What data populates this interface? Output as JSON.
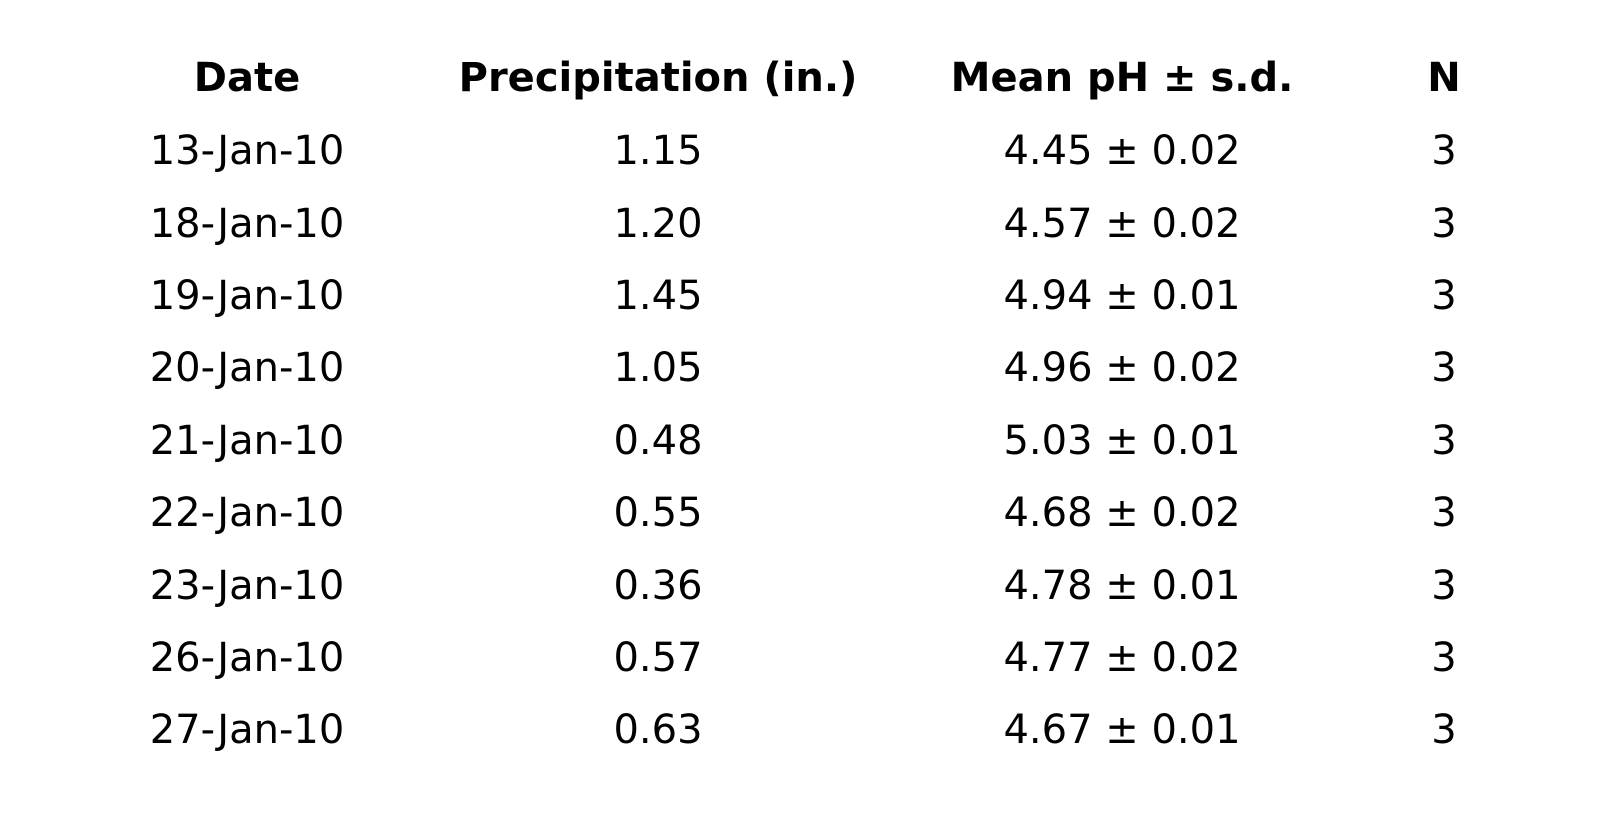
{
  "page": {
    "background_color": "#ffffff",
    "text_color": "#000000"
  },
  "table": {
    "columns": [
      "Date",
      "Precipitation (in.)",
      "Mean pH ± s.d.",
      "N"
    ],
    "rows": [
      {
        "date": "13-Jan-10",
        "precipitation_in": "1.15",
        "mean_ph_sd": "4.45 ± 0.02",
        "n": "3"
      },
      {
        "date": "18-Jan-10",
        "precipitation_in": "1.20",
        "mean_ph_sd": "4.57 ± 0.02",
        "n": "3"
      },
      {
        "date": "19-Jan-10",
        "precipitation_in": "1.45",
        "mean_ph_sd": "4.94 ± 0.01",
        "n": "3"
      },
      {
        "date": "20-Jan-10",
        "precipitation_in": "1.05",
        "mean_ph_sd": "4.96 ± 0.02",
        "n": "3"
      },
      {
        "date": "21-Jan-10",
        "precipitation_in": "0.48",
        "mean_ph_sd": "5.03 ± 0.01",
        "n": "3"
      },
      {
        "date": "22-Jan-10",
        "precipitation_in": "0.55",
        "mean_ph_sd": "4.68 ± 0.02",
        "n": "3"
      },
      {
        "date": "23-Jan-10",
        "precipitation_in": "0.36",
        "mean_ph_sd": "4.78 ± 0.01",
        "n": "3"
      },
      {
        "date": "26-Jan-10",
        "precipitation_in": "0.57",
        "mean_ph_sd": "4.77 ± 0.02",
        "n": "3"
      },
      {
        "date": "27-Jan-10",
        "precipitation_in": "0.63",
        "mean_ph_sd": "4.67 ± 0.01",
        "n": "3"
      }
    ]
  },
  "chart_data": {
    "type": "table",
    "columns": [
      "Date",
      "Precipitation (in.)",
      "Mean pH ± s.d.",
      "N"
    ],
    "rows": [
      [
        "13-Jan-10",
        "1.15",
        "4.45 ± 0.02",
        "3"
      ],
      [
        "18-Jan-10",
        "1.20",
        "4.57 ± 0.02",
        "3"
      ],
      [
        "19-Jan-10",
        "1.45",
        "4.94 ± 0.01",
        "3"
      ],
      [
        "20-Jan-10",
        "1.05",
        "4.96 ± 0.02",
        "3"
      ],
      [
        "21-Jan-10",
        "0.48",
        "5.03 ± 0.01",
        "3"
      ],
      [
        "22-Jan-10",
        "0.55",
        "4.68 ± 0.02",
        "3"
      ],
      [
        "23-Jan-10",
        "0.36",
        "4.78 ± 0.01",
        "3"
      ],
      [
        "26-Jan-10",
        "0.57",
        "4.77 ± 0.02",
        "3"
      ],
      [
        "27-Jan-10",
        "0.63",
        "4.67 ± 0.01",
        "3"
      ]
    ],
    "categories": [
      "13-Jan-10",
      "18-Jan-10",
      "19-Jan-10",
      "20-Jan-10",
      "21-Jan-10",
      "22-Jan-10",
      "23-Jan-10",
      "26-Jan-10",
      "27-Jan-10"
    ],
    "series": [
      {
        "name": "Precipitation (in.)",
        "values": [
          1.15,
          1.2,
          1.45,
          1.05,
          0.48,
          0.55,
          0.36,
          0.57,
          0.63
        ]
      },
      {
        "name": "Mean pH",
        "values": [
          4.45,
          4.57,
          4.94,
          4.96,
          5.03,
          4.68,
          4.78,
          4.77,
          4.67
        ]
      },
      {
        "name": "s.d.",
        "values": [
          0.02,
          0.02,
          0.01,
          0.02,
          0.01,
          0.02,
          0.01,
          0.02,
          0.01
        ]
      },
      {
        "name": "N",
        "values": [
          3,
          3,
          3,
          3,
          3,
          3,
          3,
          3,
          3
        ]
      }
    ],
    "title": "",
    "grid": false,
    "legend": false
  }
}
